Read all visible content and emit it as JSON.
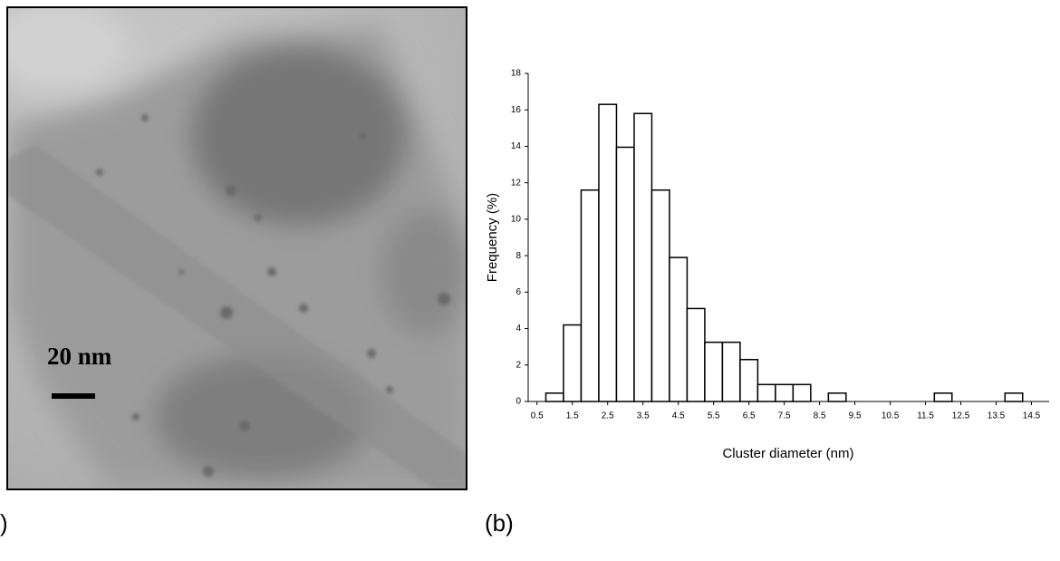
{
  "chart_data": {
    "type": "histogram",
    "x_label": "Cluster diameter (nm)",
    "y_label": "Frequency (%)",
    "bins": [
      0.75,
      1.25,
      1.75,
      2.25,
      2.75,
      3.25,
      3.75,
      4.25,
      4.75,
      5.25,
      5.75,
      6.25,
      6.75,
      7.25,
      7.75,
      8.25,
      8.75,
      9.25,
      9.75,
      10.25,
      10.75,
      11.25,
      11.75,
      12.25,
      12.75,
      13.25,
      13.75,
      14.25,
      14.75
    ],
    "values": [
      0.46,
      4.2,
      11.6,
      16.3,
      13.95,
      15.8,
      11.6,
      7.9,
      5.1,
      3.25,
      3.25,
      2.3,
      0.93,
      0.93,
      0.93,
      0,
      0.46,
      0,
      0,
      0,
      0,
      0,
      0.46,
      0,
      0,
      0,
      0.46,
      0
    ],
    "color": "#ffffff",
    "xlim": [
      0.25,
      15.0
    ],
    "xticks": [
      0.5,
      1.5,
      2.5,
      3.5,
      4.5,
      5.5,
      6.5,
      7.5,
      8.5,
      9.5,
      10.5,
      11.5,
      12.5,
      13.5,
      14.5
    ],
    "ylim": [
      0,
      18
    ],
    "yticks": [
      0,
      2,
      4,
      6,
      8,
      10,
      12,
      14,
      16,
      18
    ],
    "grid": false
  },
  "micrograph": {
    "scale_bar": "20 nm"
  },
  "panel_labels": [
    ")",
    "(b)"
  ]
}
